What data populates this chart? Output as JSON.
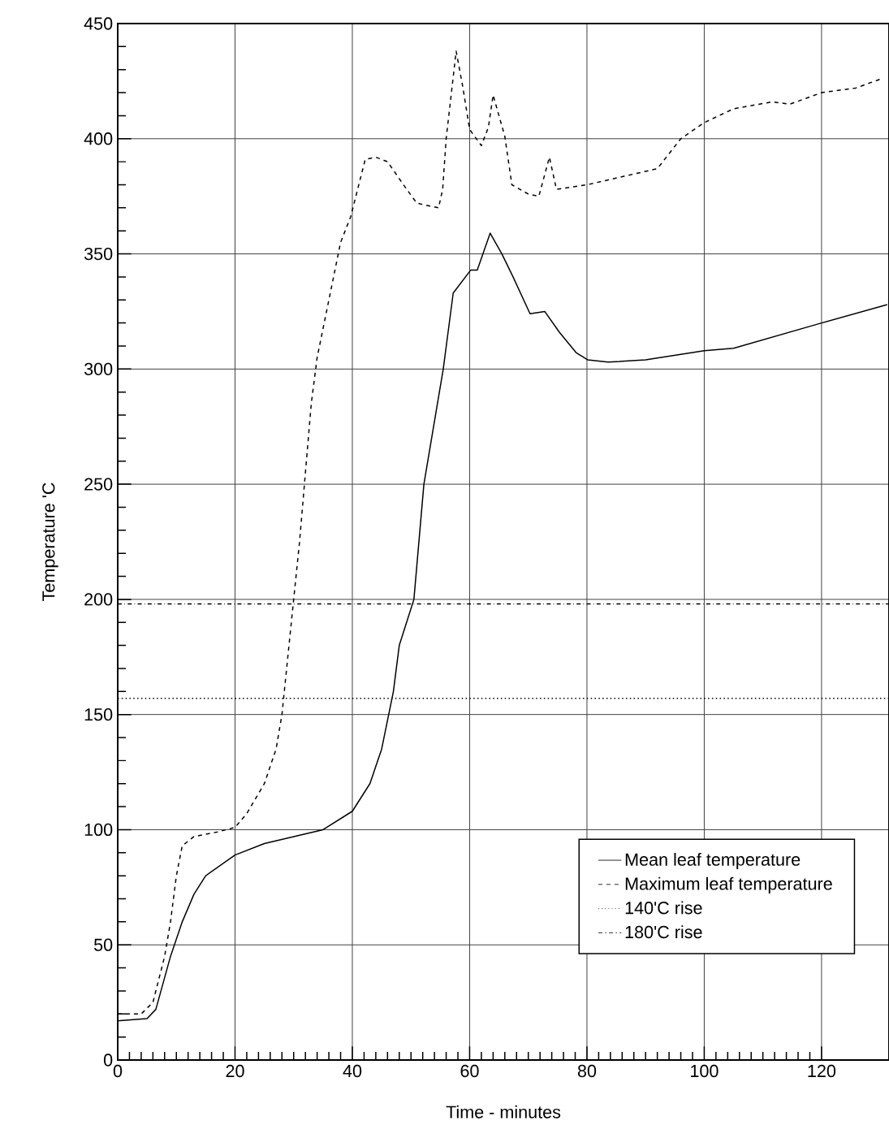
{
  "chart_data": {
    "type": "line",
    "xlabel": "Time - minutes",
    "ylabel": "Temperature 'C",
    "xlim": [
      0,
      131.5
    ],
    "ylim": [
      0,
      450
    ],
    "xticks": [
      0,
      20,
      40,
      60,
      80,
      100,
      120
    ],
    "yticks": [
      0,
      50,
      100,
      150,
      200,
      250,
      300,
      350,
      400,
      450
    ],
    "grid": true,
    "legend": "bottom right",
    "marker": "none",
    "series": [
      {
        "name": "Mean leaf temperature",
        "color": "#000000",
        "line_style": "solid",
        "x": [
          0,
          5,
          6.5,
          9,
          11,
          13,
          15,
          20,
          25,
          30,
          35,
          40,
          43,
          45,
          47,
          48,
          50.5,
          52.2,
          55.5,
          57.2,
          60.2,
          61.3,
          63.5,
          65.5,
          67.4,
          70.3,
          72.8,
          75.3,
          78.2,
          80.1,
          83.6,
          90,
          100,
          105,
          120,
          131.2
        ],
        "values": [
          17,
          18,
          22,
          45,
          60,
          72,
          80,
          89,
          94,
          97,
          100,
          108,
          120,
          135,
          160,
          180,
          200,
          250,
          300,
          333,
          343,
          343,
          359,
          350,
          340,
          324,
          325,
          316,
          307,
          304,
          303,
          304,
          308,
          309,
          320,
          328
        ]
      },
      {
        "name": "Maximum leaf temperature",
        "color": "#000000",
        "line_style": "dashed",
        "x": [
          0,
          4,
          6,
          8,
          9,
          10,
          11,
          13,
          17,
          20,
          22,
          25,
          27,
          28,
          29,
          30,
          31,
          32,
          33,
          34,
          36,
          38,
          39.7,
          42.2,
          44,
          46,
          49,
          51,
          54.7,
          55.4,
          56,
          57.7,
          58.8,
          60,
          62,
          63.2,
          64,
          66,
          67.2,
          70,
          71.8,
          73.6,
          74.8,
          80,
          92,
          96,
          100,
          105,
          111.6,
          114.6,
          120,
          125.8,
          130.2
        ],
        "values": [
          20,
          20,
          25,
          45,
          60,
          80,
          93,
          97,
          99,
          101,
          107,
          120,
          135,
          150,
          175,
          200,
          225,
          255,
          285,
          305,
          330,
          355,
          366,
          391,
          392,
          390,
          379,
          372,
          370,
          378,
          400,
          438,
          423,
          404,
          397,
          405,
          419,
          401,
          380,
          376,
          375,
          392,
          378,
          380,
          387,
          400,
          407,
          413,
          416,
          415,
          420,
          422,
          426
        ]
      },
      {
        "name": "140'C rise",
        "color": "#000000",
        "line_style": "dotted",
        "x": [
          0,
          131.5
        ],
        "values": [
          157,
          157
        ]
      },
      {
        "name": "180'C rise",
        "color": "#000000",
        "line_style": "dashdot",
        "x": [
          0,
          131.5
        ],
        "values": [
          198,
          198
        ]
      }
    ]
  }
}
